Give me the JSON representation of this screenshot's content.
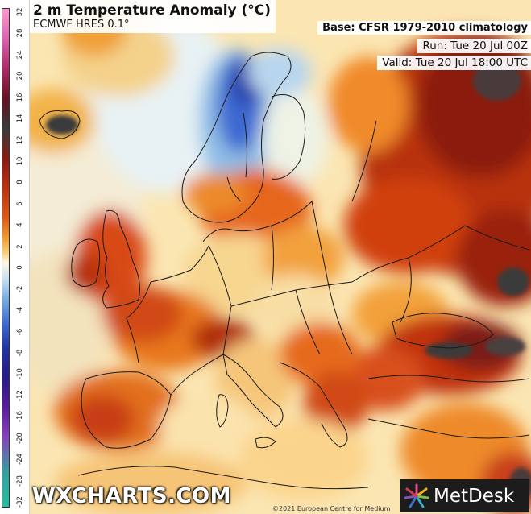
{
  "title": "2 m Temperature Anomaly (°C)",
  "model": "ECMWF HRES 0.1°",
  "base": "Base: CFSR 1979-2010 climatology",
  "run": "Run: Tue 20 Jul 00Z",
  "valid": "Valid: Tue 20 Jul 18:00 UTC",
  "colorbar": {
    "labels": [
      "32",
      "28",
      "24",
      "20",
      "16",
      "12",
      "8",
      "4",
      "0",
      "-4",
      "-8",
      "-12",
      "-16",
      "-20",
      "-24",
      "-28",
      "-32"
    ],
    "labels_fine": [
      "32",
      "28",
      "24",
      "20",
      "16",
      "14",
      "12",
      "10",
      "8",
      "6",
      "4",
      "2",
      "0",
      "-2",
      "-4",
      "-6",
      "-8",
      "-10",
      "-12",
      "-16",
      "-20",
      "-24",
      "-28",
      "-32"
    ],
    "unit": "°C"
  },
  "brand": "WXCHARTS.COM",
  "logo_text": "MetDesk",
  "copyright": "©2021 European Centre for Medium",
  "colors": {
    "hot_extreme": "#3a3a3a",
    "very_hot": "#8b1a10",
    "hot": "#c0300c",
    "warm": "#e25a12",
    "mild_warm": "#f39a2c",
    "slightly_warm": "#f8d07a",
    "neutral": "#fbe9b8",
    "slightly_cool": "#dbeef6",
    "cool": "#9ac8ea",
    "cold": "#3d6fd6",
    "very_cold": "#1f35a8",
    "sea_neutral": "#fdf0cf"
  }
}
